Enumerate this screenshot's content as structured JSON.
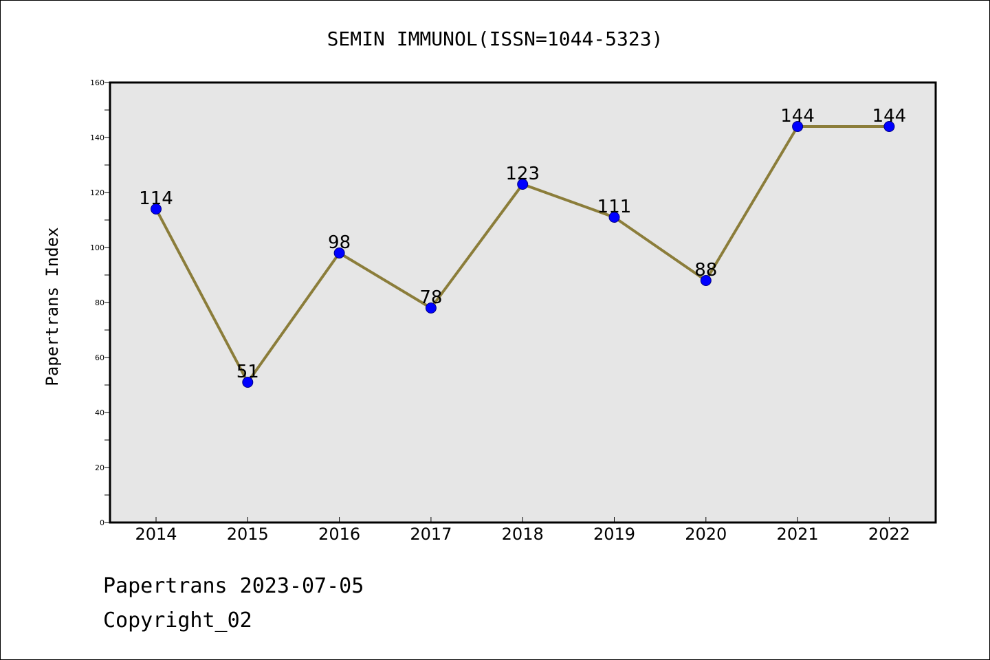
{
  "chart_data": {
    "type": "line",
    "title": "SEMIN IMMUNOL(ISSN=1044-5323)",
    "xlabel": "",
    "ylabel": "Papertrans Index",
    "categories": [
      "2014",
      "2015",
      "2016",
      "2017",
      "2018",
      "2019",
      "2020",
      "2021",
      "2022"
    ],
    "series": [
      {
        "values": [
          114,
          51,
          98,
          78,
          123,
          111,
          88,
          144,
          144
        ]
      }
    ],
    "data_labels": [
      "114",
      "51",
      "98",
      "78",
      "123",
      "111",
      "88",
      "144",
      "144"
    ],
    "ylim": [
      0,
      160
    ],
    "yticks": [
      "0",
      "20",
      "40",
      "60",
      "80",
      "100",
      "120",
      "140",
      "160"
    ],
    "grid": false,
    "legend": "none",
    "colors": {
      "line": "#8b7d3a",
      "marker": "#0000ff",
      "marker_edge": "#000080",
      "plot_background": "#e6e6e6",
      "axes_frame": "#000000"
    }
  },
  "footer": {
    "date_text": "Papertrans 2023-07-05",
    "copyright_text": "Copyright_02"
  }
}
